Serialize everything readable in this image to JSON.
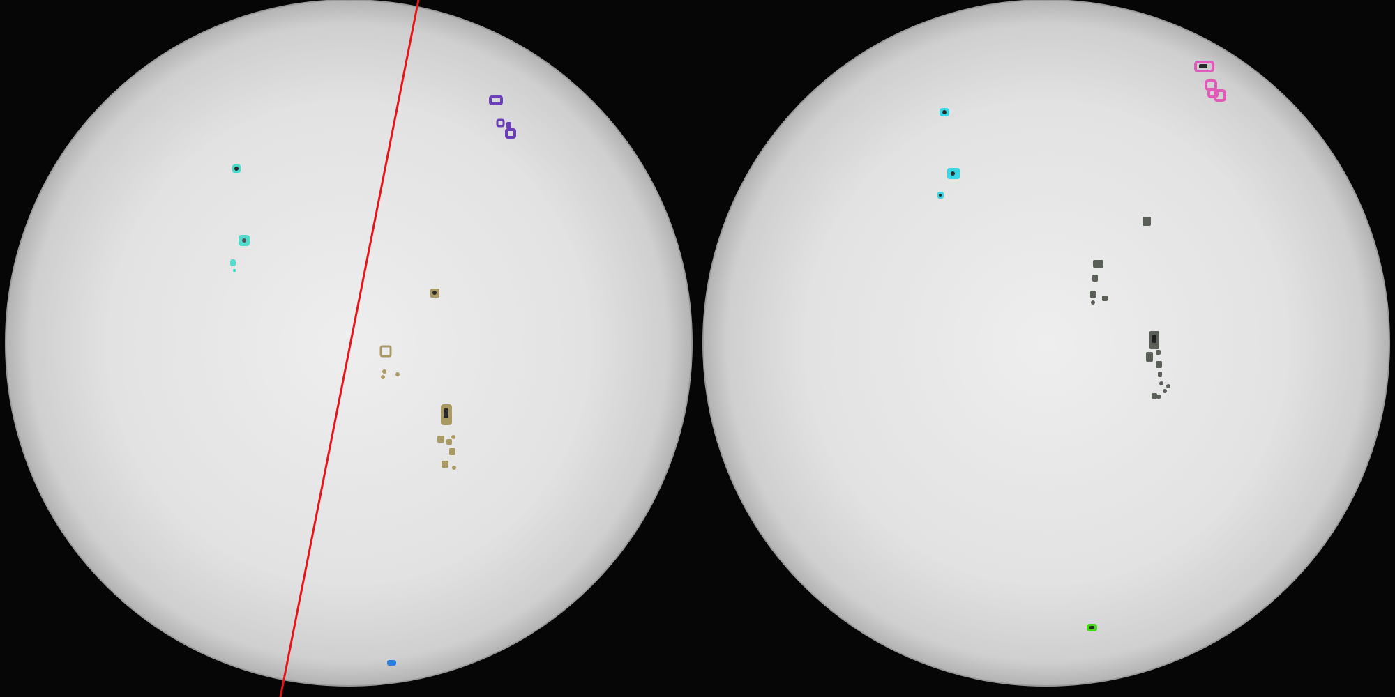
{
  "panels": [
    {
      "id": "left",
      "disk": "solar-disk",
      "overlay_line": {
        "color": "#e8141a"
      },
      "sunspot_groups": [
        {
          "color": "#2fd8c8",
          "count": 4
        },
        {
          "color": "#6a3fb8",
          "count": 4
        },
        {
          "color": "#a89a62",
          "count": 12
        },
        {
          "color": "#2a7fe0",
          "count": 1
        }
      ]
    },
    {
      "id": "right",
      "disk": "solar-disk",
      "sunspot_groups": [
        {
          "color": "#3ad6e6",
          "count": 3
        },
        {
          "color": "#e05ab8",
          "count": 4
        },
        {
          "color": "#5a6058",
          "count": 17
        },
        {
          "color": "#4ad61e",
          "count": 1
        }
      ]
    }
  ],
  "colors": {
    "background": "#060606",
    "disk_center": "#eeeeee",
    "disk_edge": "#b8b8b8",
    "disk_rim": "#9a9a9a",
    "spot_core": "#2a2a2a"
  }
}
